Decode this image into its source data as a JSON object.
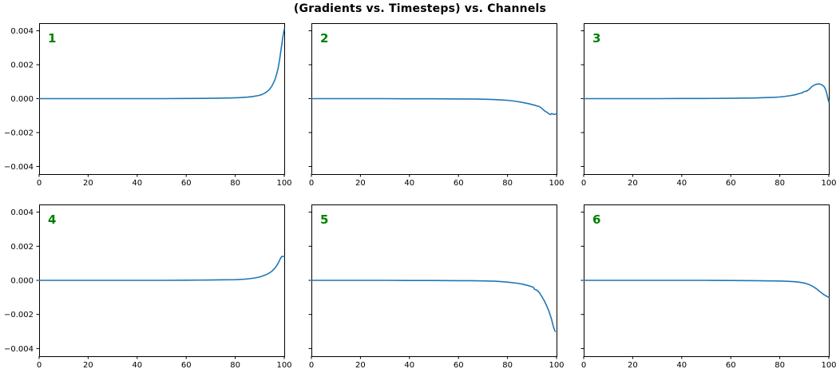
{
  "colors": {
    "line": "#1f77b4",
    "channel_label": "#008000",
    "axis": "#000000",
    "background": "#ffffff"
  },
  "chart_data": {
    "type": "line",
    "title": "(Gradients vs. Timesteps) vs. Channels",
    "layout": "2 rows x 3 columns of subplots, shared axis ranges",
    "grid": false,
    "legend": null,
    "xlim": [
      0,
      100
    ],
    "ylim": [
      -0.00445,
      0.00445
    ],
    "xticks": [
      0,
      20,
      40,
      60,
      80,
      100
    ],
    "xtick_labels": [
      "0",
      "20",
      "40",
      "60",
      "80",
      "100"
    ],
    "ytick_values": [
      0.004,
      0.002,
      0,
      -0.002,
      -0.004
    ],
    "ytick_labels": [
      "0.004",
      "0.002",
      "0.000",
      "−0.002",
      "−0.004"
    ],
    "ytick_labels_shown_on": "left column only",
    "subplots": [
      {
        "label": "1",
        "description": "flat at 0 then sharp exponential rise to 0.0041 at x=100",
        "x": [
          0,
          10,
          20,
          30,
          40,
          50,
          60,
          70,
          75,
          78,
          82,
          85,
          87,
          89,
          90,
          91,
          92,
          93,
          94,
          95,
          96,
          96.5,
          97,
          97.5,
          98,
          98.5,
          99,
          99.5,
          100
        ],
        "y": [
          0,
          0,
          0,
          0,
          0,
          0,
          1e-05,
          2e-05,
          3e-05,
          4e-05,
          6e-05,
          9e-05,
          0.00012,
          0.00017,
          0.0002,
          0.00025,
          0.00032,
          0.00042,
          0.00055,
          0.00075,
          0.00105,
          0.00125,
          0.0015,
          0.0018,
          0.0022,
          0.0027,
          0.0032,
          0.0037,
          0.0041
        ]
      },
      {
        "label": "2",
        "description": "flat at 0 then noisy decline to about -0.0009 near x=100",
        "x": [
          0,
          10,
          20,
          30,
          40,
          50,
          60,
          65,
          70,
          74,
          78,
          80,
          82,
          84,
          86,
          88,
          89,
          90,
          91,
          92,
          93,
          94,
          95,
          96,
          97,
          97.5,
          98,
          99,
          100
        ],
        "y": [
          0,
          0,
          0,
          0,
          -1e-05,
          -1e-05,
          -2e-05,
          -2e-05,
          -3e-05,
          -5e-05,
          -8e-05,
          -0.0001,
          -0.00013,
          -0.00017,
          -0.00022,
          -0.00028,
          -0.00031,
          -0.00035,
          -0.00038,
          -0.00043,
          -0.00047,
          -0.00057,
          -0.00071,
          -0.0008,
          -0.0009,
          -0.00094,
          -0.00088,
          -0.00093,
          -0.0009
        ]
      },
      {
        "label": "3",
        "description": "flat at 0, gentle rise to peak ~0.00087 near x=95, sharp drop to -0.0002 at x=100",
        "x": [
          0,
          10,
          20,
          30,
          40,
          50,
          60,
          65,
          70,
          74,
          78,
          80,
          82,
          84,
          86,
          88,
          89,
          90,
          90.5,
          91,
          92,
          93,
          94,
          95,
          96,
          97,
          98,
          98.5,
          99,
          99.5,
          100
        ],
        "y": [
          0,
          0,
          0,
          0,
          1e-05,
          1e-05,
          2e-05,
          3e-05,
          4e-05,
          6e-05,
          8e-05,
          0.0001,
          0.00013,
          0.00017,
          0.00022,
          0.0003,
          0.00034,
          0.00042,
          0.00043,
          0.00045,
          0.00055,
          0.0007,
          0.0008,
          0.00085,
          0.00087,
          0.00083,
          0.00072,
          0.0006,
          0.0004,
          0.0001,
          -0.0002
        ]
      },
      {
        "label": "4",
        "description": "flat at 0 then rise to 0.0014 with flat cap at the end",
        "x": [
          0,
          10,
          20,
          30,
          40,
          50,
          60,
          70,
          75,
          80,
          84,
          86,
          88,
          90,
          92,
          93,
          94,
          95,
          96,
          97,
          97.5,
          98,
          98.5,
          99,
          100
        ],
        "y": [
          0,
          0,
          0,
          0,
          0,
          0,
          1e-05,
          2e-05,
          3e-05,
          4e-05,
          7e-05,
          0.0001,
          0.00014,
          0.0002,
          0.0003,
          0.00036,
          0.00044,
          0.00054,
          0.00068,
          0.00088,
          0.001,
          0.00115,
          0.0013,
          0.0014,
          0.0014
        ]
      },
      {
        "label": "5",
        "description": "flat at 0 then accelerating plunge to about -0.003 at x~99.5",
        "x": [
          0,
          10,
          20,
          30,
          40,
          50,
          60,
          65,
          70,
          75,
          78,
          81,
          84,
          86,
          88,
          89,
          90,
          90.5,
          91,
          92,
          93,
          94,
          95,
          96,
          97,
          98,
          98.5,
          99,
          99.5
        ],
        "y": [
          0,
          0,
          0,
          0,
          -1e-05,
          -1e-05,
          -2e-05,
          -2e-05,
          -3e-05,
          -5e-05,
          -8e-05,
          -0.00012,
          -0.00017,
          -0.00022,
          -0.00029,
          -0.00033,
          -0.00038,
          -0.0004,
          -0.00052,
          -0.00058,
          -0.00072,
          -0.00095,
          -0.0012,
          -0.0015,
          -0.00185,
          -0.0023,
          -0.0026,
          -0.00285,
          -0.003
        ]
      },
      {
        "label": "6",
        "description": "flat at 0 then gentle decline to about -0.001 at x=100",
        "x": [
          0,
          10,
          20,
          30,
          40,
          50,
          60,
          70,
          76,
          80,
          84,
          86,
          88,
          90,
          91,
          92,
          93,
          94,
          95,
          96,
          97,
          98,
          99,
          100
        ],
        "y": [
          0,
          0,
          0,
          0,
          0,
          0,
          -1e-05,
          -2e-05,
          -3e-05,
          -4e-05,
          -6e-05,
          -8e-05,
          -0.00011,
          -0.00016,
          -0.0002,
          -0.00025,
          -0.00032,
          -0.0004,
          -0.0005,
          -0.00062,
          -0.00073,
          -0.00084,
          -0.00092,
          -0.001
        ]
      }
    ]
  }
}
